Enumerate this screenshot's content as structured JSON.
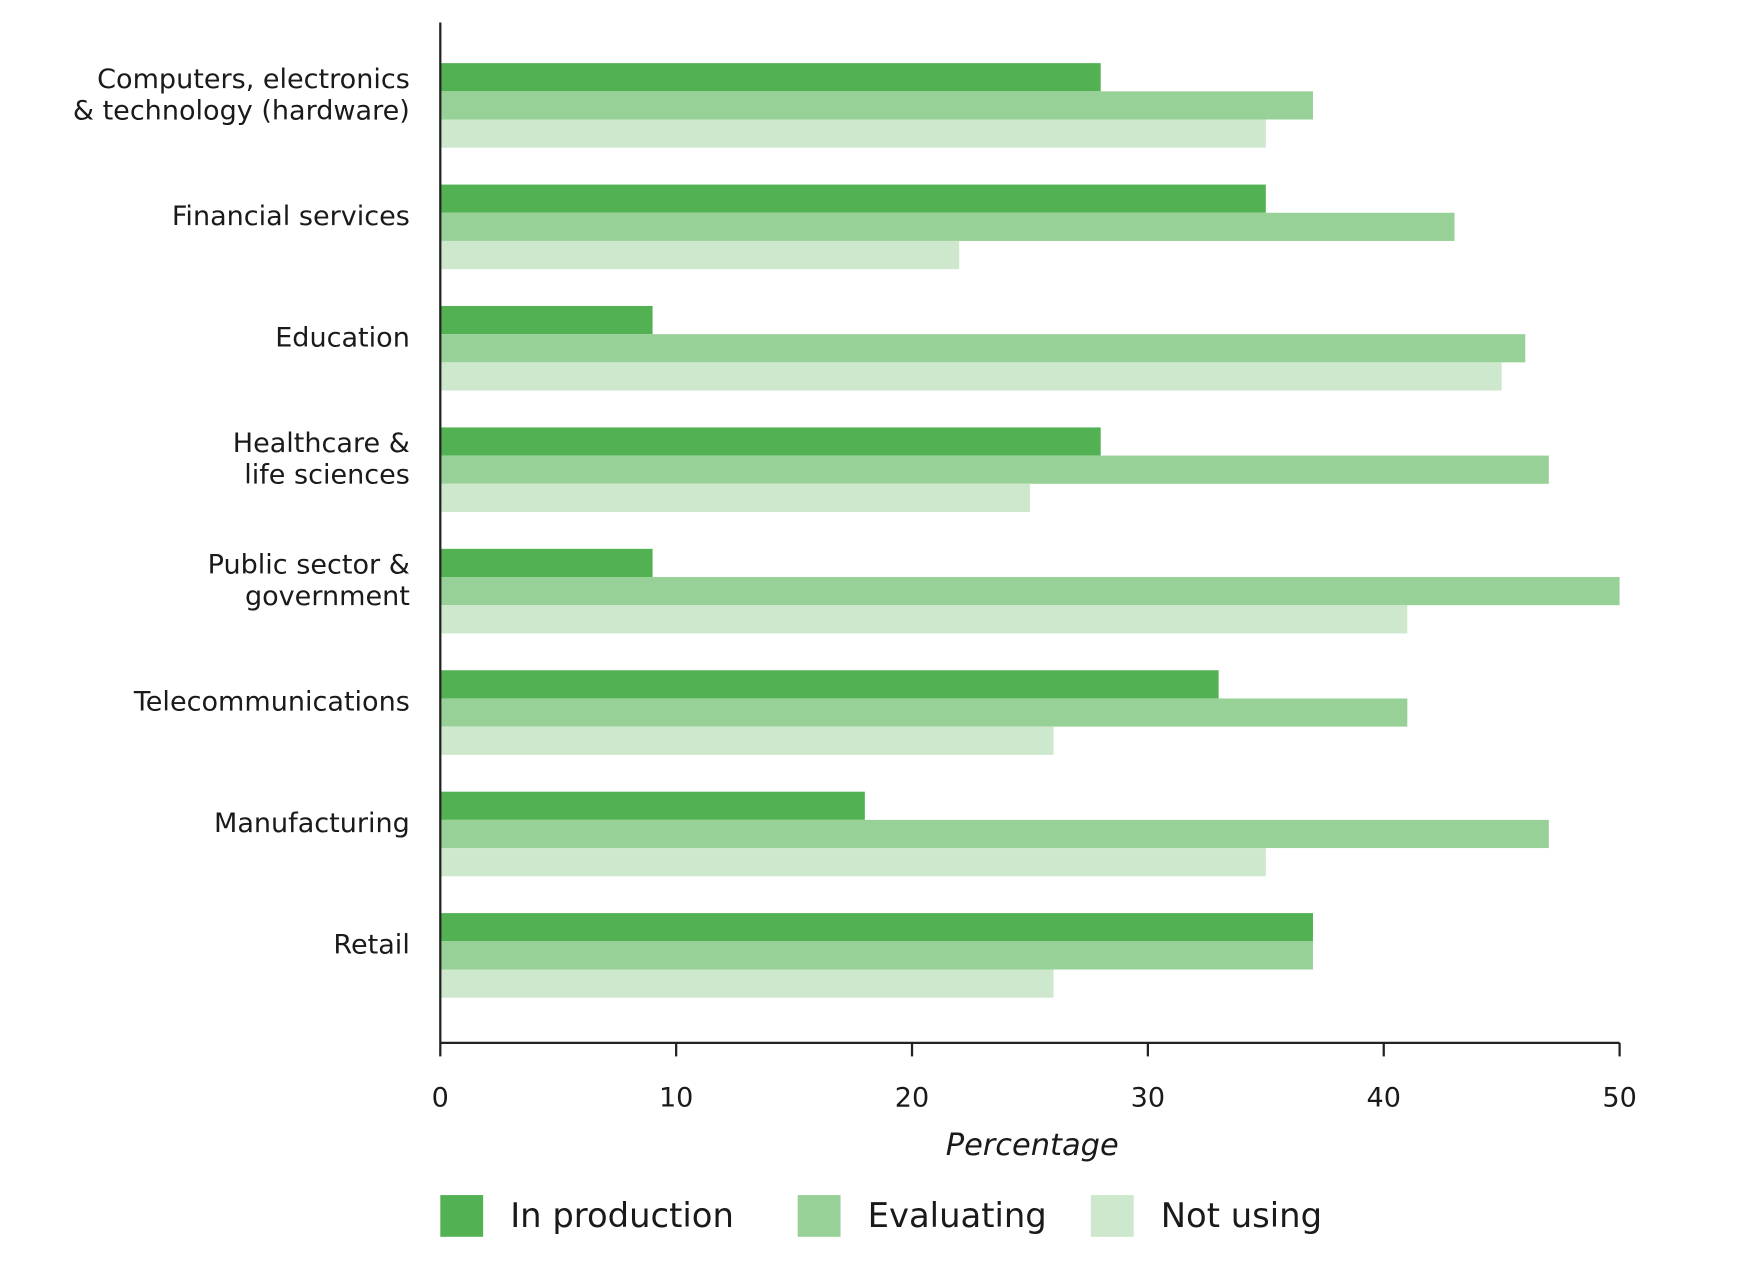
{
  "chart_data": {
    "type": "bar",
    "orientation": "horizontal",
    "x_label": "Percentage",
    "categories": [
      "Computers, electronics\n& technology (hardware)",
      "Financial services",
      "Education",
      "Healthcare &\nlife sciences",
      "Public sector &\ngovernment",
      "Telecommunications",
      "Manufacturing",
      "Retail"
    ],
    "series": [
      {
        "name": "In production",
        "color": "#52b152",
        "values": [
          28,
          35,
          9,
          28,
          9,
          33,
          18,
          37
        ]
      },
      {
        "name": "Evaluating",
        "color": "#98d197",
        "values": [
          37,
          43,
          46,
          47,
          50,
          41,
          47,
          37
        ]
      },
      {
        "name": "Not using",
        "color": "#cde8cc",
        "values": [
          35,
          22,
          45,
          25,
          41,
          26,
          35,
          26
        ]
      }
    ],
    "xlim": [
      0,
      50
    ],
    "xticks": [
      0,
      10,
      20,
      30,
      40,
      50
    ],
    "legend": "bottom"
  }
}
